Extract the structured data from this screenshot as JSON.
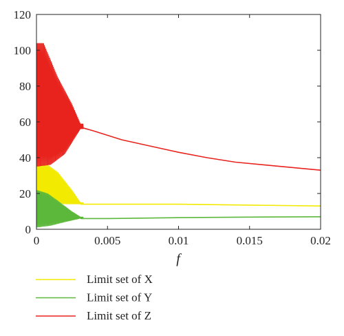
{
  "chart_data": {
    "type": "line",
    "xlabel": "f",
    "ylabel": "",
    "xlim": [
      0,
      0.02
    ],
    "ylim": [
      0,
      120
    ],
    "x_ticks": [
      0,
      0.005,
      0.01,
      0.015,
      0.02
    ],
    "x_tick_labels": [
      "0",
      "0.005",
      "0.01",
      "0.015",
      "0.02"
    ],
    "y_ticks": [
      0,
      20,
      40,
      60,
      80,
      100,
      120
    ],
    "y_tick_labels": [
      "0",
      "20",
      "40",
      "60",
      "80",
      "100",
      "120"
    ],
    "grid": false,
    "legend_position": "below-left",
    "series": [
      {
        "name": "Limit set of X",
        "color": "#f2ea00",
        "osc_end_x": 0.0033,
        "osc_min": [
          [
            0,
            16
          ],
          [
            0.001,
            15
          ],
          [
            0.002,
            14
          ],
          [
            0.0031,
            14
          ]
        ],
        "osc_max": [
          [
            0,
            36
          ],
          [
            0.0008,
            36
          ],
          [
            0.0015,
            32
          ],
          [
            0.0025,
            22
          ],
          [
            0.0031,
            15
          ]
        ],
        "steady": [
          [
            0.0031,
            14
          ],
          [
            0.005,
            14
          ],
          [
            0.01,
            14
          ],
          [
            0.015,
            13.5
          ],
          [
            0.02,
            13
          ]
        ]
      },
      {
        "name": "Limit set of Y",
        "color": "#5cb83a",
        "osc_end_x": 0.0033,
        "osc_min": [
          [
            0,
            1
          ],
          [
            0.001,
            2
          ],
          [
            0.002,
            4
          ],
          [
            0.0031,
            6
          ]
        ],
        "osc_max": [
          [
            0,
            22
          ],
          [
            0.0008,
            20
          ],
          [
            0.0015,
            16
          ],
          [
            0.0025,
            10
          ],
          [
            0.0031,
            7
          ]
        ],
        "steady": [
          [
            0.0031,
            6
          ],
          [
            0.005,
            6
          ],
          [
            0.01,
            6.5
          ],
          [
            0.015,
            6.8
          ],
          [
            0.02,
            7
          ]
        ]
      },
      {
        "name": "Limit set of Z",
        "color": "#e8221c",
        "osc_end_x": 0.0033,
        "osc_min": [
          [
            0,
            35
          ],
          [
            0.001,
            36
          ],
          [
            0.002,
            42
          ],
          [
            0.0031,
            56
          ]
        ],
        "osc_max": [
          [
            0,
            104
          ],
          [
            0.0005,
            104
          ],
          [
            0.0015,
            85
          ],
          [
            0.0025,
            70
          ],
          [
            0.0031,
            59
          ]
        ],
        "steady": [
          [
            0.0031,
            57
          ],
          [
            0.004,
            55
          ],
          [
            0.006,
            50
          ],
          [
            0.008,
            46.5
          ],
          [
            0.01,
            43
          ],
          [
            0.012,
            40
          ],
          [
            0.014,
            37.5
          ],
          [
            0.016,
            36
          ],
          [
            0.018,
            34.5
          ],
          [
            0.02,
            33
          ]
        ]
      }
    ]
  }
}
